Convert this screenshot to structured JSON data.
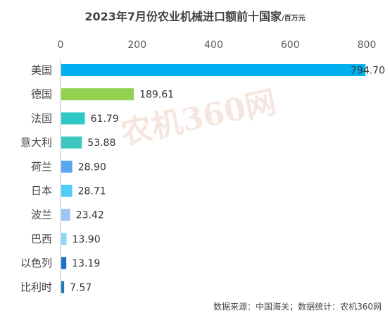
{
  "chart_data": {
    "type": "bar",
    "orientation": "horizontal",
    "title": "2023年7月份农业机械进口额前十国家",
    "title_unit": "/百万元",
    "categories": [
      "美国",
      "德国",
      "法国",
      "意大利",
      "荷兰",
      "日本",
      "波兰",
      "巴西",
      "以色列",
      "比利时"
    ],
    "values": [
      794.7,
      189.61,
      61.79,
      53.88,
      28.9,
      28.71,
      23.42,
      13.9,
      13.19,
      7.57
    ],
    "value_labels": [
      "794.70",
      "189.61",
      "61.79",
      "53.88",
      "28.90",
      "28.71",
      "23.42",
      "13.90",
      "13.19",
      "7.57"
    ],
    "colors": [
      "#00b0f0",
      "#92d050",
      "#2ec8c8",
      "#3cc8c0",
      "#5aa6f0",
      "#50cdf8",
      "#9dc8f5",
      "#8cd8f8",
      "#1a6fc8",
      "#1f77b4"
    ],
    "xlim": [
      0,
      800
    ],
    "xticks": [
      "0",
      "200",
      "400",
      "600",
      "800"
    ],
    "xaxis_position": "top",
    "grid": false,
    "legend": "none"
  },
  "watermark": "农机360网",
  "source": "数据来源：中国海关；数据统计：农机360网"
}
